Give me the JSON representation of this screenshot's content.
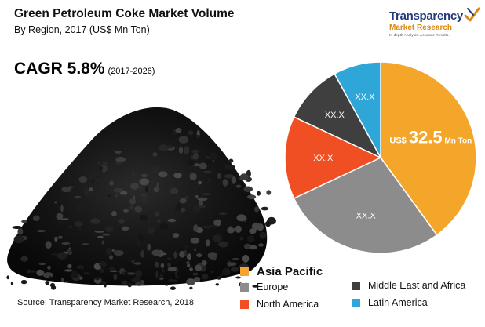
{
  "header": {
    "title": "Green Petroleum Coke Market Volume",
    "subtitle": "By Region, 2017 (US$ Mn Ton)"
  },
  "cagr": {
    "label": "CAGR 5.8%",
    "period": "(2017-2026)"
  },
  "source": "Source: Transparency Market Research, 2018",
  "logo": {
    "name": "Transparency",
    "name2": "Market Research",
    "tagline": "In-depth Analysis. Accurate Results."
  },
  "chart_data": {
    "type": "pie",
    "title": "Green Petroleum Coke Market Volume",
    "subtitle": "By Region, 2017 (US$ Mn Ton)",
    "slices": [
      {
        "name": "Asia Pacific",
        "share": 0.4,
        "label": "US$ 32.5 Mn Ton",
        "color": "#f4a62a"
      },
      {
        "name": "Europe",
        "share": 0.28,
        "label": "XX.X",
        "color": "#8c8c8c"
      },
      {
        "name": "North America",
        "share": 0.14,
        "label": "XX.X",
        "color": "#f04e23"
      },
      {
        "name": "Middle East and Africa",
        "share": 0.1,
        "label": "XX.X",
        "color": "#3f3f3f"
      },
      {
        "name": "Latin America",
        "share": 0.08,
        "label": "XX.X",
        "color": "#2ea6d8"
      }
    ],
    "highlight_label": {
      "prefix": "US$",
      "value": "32.5",
      "unit": "Mn Ton"
    },
    "legend_placement": "bottom-right"
  }
}
